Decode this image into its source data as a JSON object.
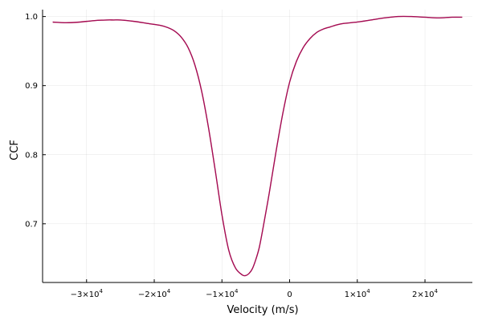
{
  "chart_data": {
    "type": "line",
    "title": "",
    "xlabel": "Velocity (m/s)",
    "ylabel": "CCF",
    "xlim": [
      -36500,
      27000
    ],
    "ylim": [
      0.615,
      1.01
    ],
    "grid": true,
    "legend": "none",
    "xticks": [
      {
        "value": -30000,
        "mantissa": "−3",
        "exponent": "4",
        "label": ""
      },
      {
        "value": -20000,
        "mantissa": "−2",
        "exponent": "4",
        "label": ""
      },
      {
        "value": -10000,
        "mantissa": "−1",
        "exponent": "4",
        "label": ""
      },
      {
        "value": 0,
        "mantissa": "",
        "exponent": "",
        "label": "0"
      },
      {
        "value": 10000,
        "mantissa": "1",
        "exponent": "4",
        "label": ""
      },
      {
        "value": 20000,
        "mantissa": "2",
        "exponent": "4",
        "label": ""
      }
    ],
    "xtick_base": "×10",
    "yticks": [
      {
        "value": 0.7,
        "label": "0.7"
      },
      {
        "value": 0.8,
        "label": "0.8"
      },
      {
        "value": 0.9,
        "label": "0.9"
      },
      {
        "value": 1.0,
        "label": "1.0"
      }
    ],
    "series": [
      {
        "color": "#b3003b",
        "x": [
          -35000,
          -33000,
          -31000,
          -29000,
          -27000,
          -26000,
          -25000,
          -23000,
          -21000,
          -19000,
          -18000,
          -17000,
          -16000,
          -15000,
          -14000,
          -13000,
          -12000,
          -11000,
          -10000,
          -9000,
          -8000,
          -7000,
          -6500,
          -6000,
          -5500,
          -5000,
          -4500,
          -4000,
          -3000,
          -2000,
          -1000,
          0,
          1000,
          2000,
          3000,
          4000,
          5000,
          6000,
          7000,
          8000,
          10000,
          12000,
          14000,
          16000,
          18000,
          20000,
          22000,
          24000,
          25500
        ],
        "y": [
          0.992,
          0.991,
          0.992,
          0.994,
          0.995,
          0.995,
          0.995,
          0.993,
          0.99,
          0.987,
          0.984,
          0.979,
          0.97,
          0.955,
          0.93,
          0.892,
          0.84,
          0.778,
          0.713,
          0.662,
          0.636,
          0.626,
          0.625,
          0.628,
          0.635,
          0.648,
          0.665,
          0.69,
          0.745,
          0.805,
          0.86,
          0.905,
          0.935,
          0.955,
          0.968,
          0.977,
          0.982,
          0.985,
          0.988,
          0.99,
          0.992,
          0.995,
          0.998,
          1.0,
          1.0,
          0.999,
          0.998,
          0.999,
          0.999
        ]
      },
      {
        "color": "#8e1a72",
        "x": [
          -35000,
          -33000,
          -31000,
          -29000,
          -27000,
          -26000,
          -25000,
          -23000,
          -21000,
          -19000,
          -18000,
          -17000,
          -16000,
          -15000,
          -14000,
          -13000,
          -12000,
          -11000,
          -10000,
          -9000,
          -8000,
          -7000,
          -6500,
          -6000,
          -5500,
          -5000,
          -4500,
          -4000,
          -3000,
          -2000,
          -1000,
          0,
          1000,
          2000,
          3000,
          4000,
          5000,
          6000,
          7000,
          8000,
          10000,
          12000,
          14000,
          16000,
          18000,
          20000,
          22000,
          24000,
          25500
        ],
        "y": [
          0.992,
          0.991,
          0.992,
          0.994,
          0.995,
          0.995,
          0.995,
          0.993,
          0.99,
          0.987,
          0.984,
          0.979,
          0.97,
          0.955,
          0.93,
          0.892,
          0.84,
          0.778,
          0.713,
          0.662,
          0.636,
          0.626,
          0.625,
          0.628,
          0.635,
          0.648,
          0.665,
          0.69,
          0.745,
          0.805,
          0.86,
          0.905,
          0.935,
          0.955,
          0.968,
          0.977,
          0.982,
          0.985,
          0.988,
          0.99,
          0.992,
          0.995,
          0.998,
          1.0,
          1.0,
          0.999,
          0.998,
          0.999,
          0.999
        ]
      }
    ]
  }
}
